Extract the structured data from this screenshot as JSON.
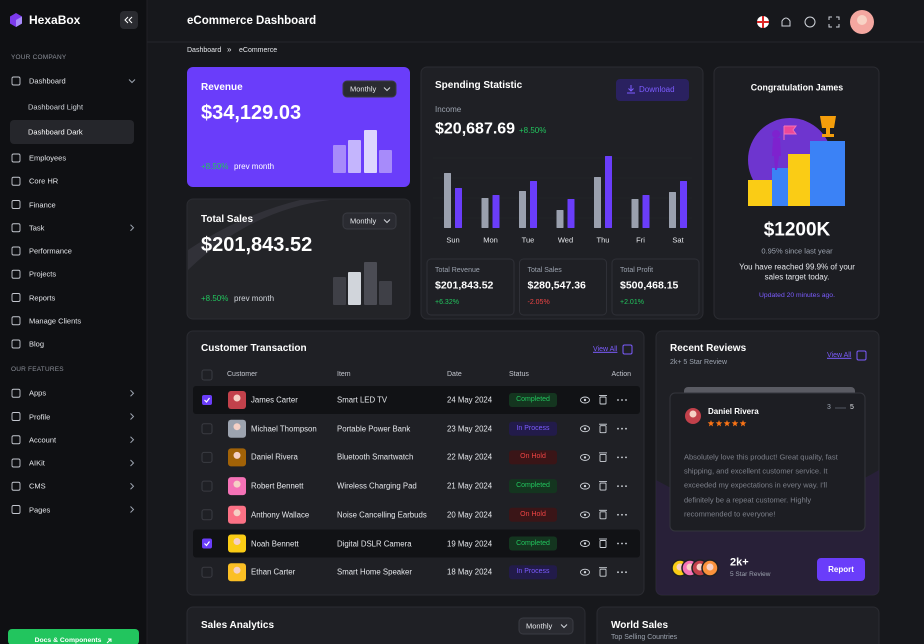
{
  "sidebar": {
    "brand": "HexaBox",
    "sections": [
      {
        "title": "YOUR COMPANY",
        "items": [
          {
            "label": "Dashboard",
            "chevron": "down",
            "children": [
              {
                "label": "Dashboard Light"
              },
              {
                "label": "Dashboard Dark",
                "active": true
              }
            ]
          },
          {
            "label": "Employees"
          },
          {
            "label": "Core HR"
          },
          {
            "label": "Finance"
          },
          {
            "label": "Task",
            "chevron": "right"
          },
          {
            "label": "Performance"
          },
          {
            "label": "Projects"
          },
          {
            "label": "Reports"
          },
          {
            "label": "Manage Clients"
          },
          {
            "label": "Blog"
          }
        ]
      },
      {
        "title": "OUR FEATURES",
        "items": [
          {
            "label": "Apps",
            "chevron": "right"
          },
          {
            "label": "Profile",
            "chevron": "right"
          },
          {
            "label": "Account",
            "chevron": "right"
          },
          {
            "label": "AIKit",
            "chevron": "right"
          },
          {
            "label": "CMS",
            "chevron": "right"
          },
          {
            "label": "Pages",
            "chevron": "right"
          }
        ]
      }
    ],
    "button": "Docs & Components"
  },
  "header": {
    "title": "eCommerce Dashboard",
    "breadcrumb": [
      "Dashboard",
      "eCommerce"
    ],
    "separator": "»"
  },
  "revenue": {
    "title": "Revenue",
    "period": "Monthly",
    "value": "$34,129.03",
    "change": "+8.50%",
    "note": "prev month"
  },
  "total_sales": {
    "title": "Total Sales",
    "period": "Monthly",
    "value": "$201,843.52",
    "change": "+8.50%",
    "note": "prev month"
  },
  "spending": {
    "title": "Spending Statistic",
    "button": "Download",
    "label": "Income",
    "value": "$20,687.69",
    "change": "+8.50%",
    "chart": {
      "type": "bar",
      "categories": [
        "Sun",
        "Mon",
        "Tue",
        "Wed",
        "Thu",
        "Fri",
        "Sat"
      ],
      "series": [
        {
          "color": "#9aa0ae",
          "values": [
            55,
            30,
            37,
            18,
            51,
            29,
            36
          ]
        },
        {
          "color": "#6a3dfa",
          "values": [
            40,
            33,
            47,
            29,
            72,
            33,
            47
          ]
        }
      ],
      "ylim": [
        0,
        80
      ]
    },
    "stats": [
      {
        "label": "Total Revenue",
        "value": "$201,843.52",
        "change": "+6.32%"
      },
      {
        "label": "Total Sales",
        "value": "$280,547.36",
        "change": "-2.05%"
      },
      {
        "label": "Total Profit",
        "value": "$500,468.15",
        "change": "+2.01%"
      }
    ]
  },
  "congrats": {
    "title": "Congratulation James",
    "value": "$1200K",
    "subtitle": "0.95% since last year",
    "message": "You have reached 99.9% of your sales target today.",
    "updated": "Updated 20 minutes ago."
  },
  "transactions": {
    "title": "Customer Transaction",
    "view_all": "View All",
    "columns": [
      "Customer",
      "Item",
      "Date",
      "Status",
      "Action"
    ],
    "rows": [
      {
        "customer": "James Carter",
        "item": "Smart LED TV",
        "date": "24 May 2024",
        "status": "Completed",
        "checked": true
      },
      {
        "customer": "Michael Thompson",
        "item": "Portable Power Bank",
        "date": "23 May 2024",
        "status": "In Process",
        "checked": false
      },
      {
        "customer": "Daniel Rivera",
        "item": "Bluetooth Smartwatch",
        "date": "22 May 2024",
        "status": "On Hold",
        "checked": false
      },
      {
        "customer": "Robert Bennett",
        "item": "Wireless Charging Pad",
        "date": "21 May 2024",
        "status": "Completed",
        "checked": false
      },
      {
        "customer": "Anthony Wallace",
        "item": "Noise Cancelling Earbuds",
        "date": "20 May 2024",
        "status": "On Hold",
        "checked": false
      },
      {
        "customer": "Noah Bennett",
        "item": "Digital DSLR Camera",
        "date": "19 May 2024",
        "status": "Completed",
        "checked": true
      },
      {
        "customer": "Ethan Carter",
        "item": "Smart Home Speaker",
        "date": "18 May 2024",
        "status": "In Process",
        "checked": false
      }
    ]
  },
  "reviews": {
    "title": "Recent Reviews",
    "subtitle": "2k+ 5 Star Review",
    "view_all": "View All",
    "reviewer": "Daniel Rivera",
    "page": "3",
    "pages": "5",
    "text": "Absolutely love this product! Great quality, fast shipping, and excellent customer service. It exceeded my expectations in every way. I'll definitely be a repeat customer. Highly recommended to everyone!",
    "count": "2k+",
    "count_label": "5 Star Review",
    "button": "Report"
  },
  "sales_analytics": {
    "title": "Sales Analytics",
    "period": "Monthly"
  },
  "world_sales": {
    "title": "World Sales",
    "subtitle": "Top Selling Countries"
  }
}
